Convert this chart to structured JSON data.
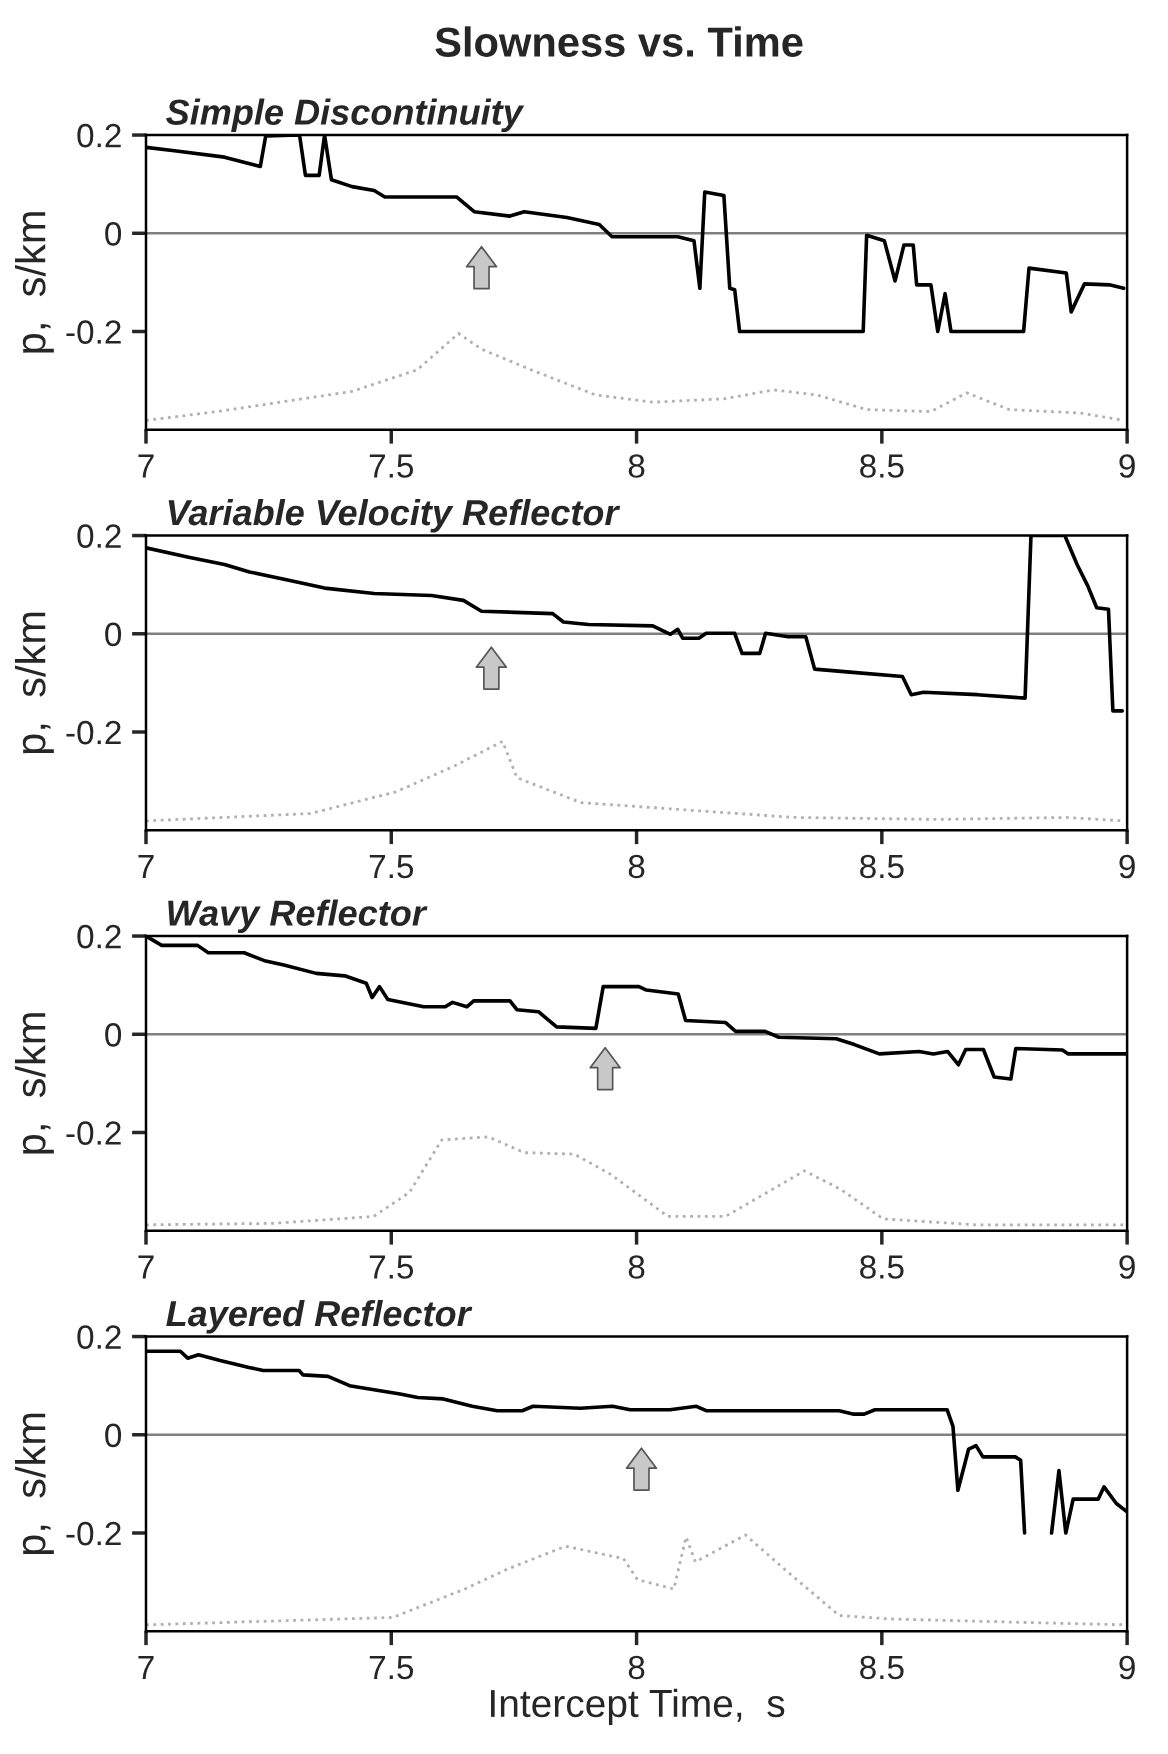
{
  "chart_data": [
    {
      "type": "line",
      "title": "Slowness vs. Time",
      "subtitle": "Simple Discontinuity",
      "ylabel": "p,  s/km",
      "xlim": [
        7,
        9
      ],
      "xticks": [
        7,
        7.5,
        8,
        8.5,
        9
      ],
      "ylim": [
        -0.4,
        0.2
      ],
      "yticks": [
        -0.2,
        0,
        0.2
      ],
      "grid": false,
      "legend": false,
      "ref_lines": [
        {
          "axis": "y",
          "value": 0,
          "color": "#808080"
        }
      ],
      "series": [
        {
          "color": "#000000",
          "line_style": "solid",
          "x": [
            7.0,
            7.058,
            7.16,
            7.233,
            7.244,
            7.313,
            7.325,
            7.353,
            7.364,
            7.378,
            7.42,
            7.465,
            7.487,
            7.633,
            7.669,
            7.742,
            7.771,
            7.858,
            7.924,
            7.95,
            8.084,
            8.117,
            8.129,
            8.139,
            8.178,
            8.19,
            8.2,
            8.21,
            8.462,
            8.469,
            8.505,
            8.527,
            8.545,
            8.564,
            8.571,
            8.6,
            8.614,
            8.629,
            8.641,
            8.789,
            8.8,
            8.876,
            8.886,
            8.913,
            8.964,
            8.993
          ],
          "values": [
            0.175,
            0.168,
            0.155,
            0.136,
            0.198,
            0.2,
            0.118,
            0.118,
            0.2,
            0.109,
            0.095,
            0.087,
            0.074,
            0.074,
            0.044,
            0.035,
            0.044,
            0.032,
            0.018,
            -0.007,
            -0.007,
            -0.015,
            -0.112,
            0.084,
            0.077,
            -0.112,
            -0.115,
            -0.2,
            -0.2,
            -0.004,
            -0.015,
            -0.097,
            -0.024,
            -0.024,
            -0.105,
            -0.105,
            -0.2,
            -0.123,
            -0.2,
            -0.2,
            -0.071,
            -0.081,
            -0.16,
            -0.103,
            -0.105,
            -0.112
          ]
        },
        {
          "color": "#b0b0b0",
          "line_style": "dotted",
          "x": [
            7.0,
            7.145,
            7.42,
            7.553,
            7.637,
            7.684,
            7.785,
            7.916,
            8.033,
            8.178,
            8.28,
            8.367,
            8.469,
            8.6,
            8.673,
            8.76,
            8.905,
            8.993
          ],
          "values": [
            -0.381,
            -0.363,
            -0.322,
            -0.278,
            -0.204,
            -0.236,
            -0.278,
            -0.329,
            -0.344,
            -0.337,
            -0.319,
            -0.329,
            -0.359,
            -0.363,
            -0.325,
            -0.359,
            -0.366,
            -0.381
          ]
        }
      ]
    },
    {
      "type": "line",
      "subtitle": "Variable Velocity Reflector",
      "ylabel": "p,  s/km",
      "xlim": [
        7,
        9
      ],
      "xticks": [
        7,
        7.5,
        8,
        8.5,
        9
      ],
      "ylim": [
        -0.4,
        0.2
      ],
      "yticks": [
        -0.2,
        0,
        0.2
      ],
      "grid": false,
      "legend": false,
      "ref_lines": [
        {
          "axis": "y",
          "value": 0,
          "color": "#808080"
        }
      ],
      "series": [
        {
          "color": "#000000",
          "line_style": "solid",
          "x": [
            7.0,
            7.087,
            7.16,
            7.211,
            7.291,
            7.364,
            7.465,
            7.582,
            7.647,
            7.684,
            7.829,
            7.851,
            7.902,
            8.033,
            8.069,
            8.084,
            8.094,
            8.127,
            8.142,
            8.2,
            8.215,
            8.251,
            8.263,
            8.309,
            8.345,
            8.363,
            8.447,
            8.542,
            8.56,
            8.585,
            8.695,
            8.792,
            8.804,
            8.873,
            8.898,
            8.92,
            8.938,
            8.962,
            8.971,
            8.99
          ],
          "values": [
            0.175,
            0.156,
            0.141,
            0.126,
            0.109,
            0.093,
            0.082,
            0.078,
            0.068,
            0.046,
            0.041,
            0.024,
            0.019,
            0.016,
            -0.001,
            0.009,
            -0.009,
            -0.009,
            0.001,
            0.001,
            -0.04,
            -0.04,
            0.001,
            -0.006,
            -0.006,
            -0.072,
            -0.079,
            -0.087,
            -0.124,
            -0.119,
            -0.124,
            -0.131,
            0.2,
            0.2,
            0.141,
            0.097,
            0.053,
            0.05,
            -0.157,
            -0.157
          ]
        },
        {
          "color": "#b0b0b0",
          "line_style": "dotted",
          "x": [
            7.0,
            7.335,
            7.509,
            7.625,
            7.727,
            7.756,
            7.887,
            8.105,
            8.324,
            8.615,
            8.876,
            8.993
          ],
          "values": [
            -0.381,
            -0.366,
            -0.322,
            -0.271,
            -0.219,
            -0.293,
            -0.344,
            -0.359,
            -0.374,
            -0.378,
            -0.374,
            -0.381
          ]
        }
      ]
    },
    {
      "type": "line",
      "subtitle": "Wavy Reflector",
      "ylabel": "p,  s/km",
      "xlim": [
        7,
        9
      ],
      "xticks": [
        7,
        7.5,
        8,
        8.5,
        9
      ],
      "ylim": [
        -0.4,
        0.2
      ],
      "yticks": [
        -0.2,
        0,
        0.2
      ],
      "grid": false,
      "legend": false,
      "ref_lines": [
        {
          "axis": "y",
          "value": 0,
          "color": "#808080"
        }
      ],
      "series": [
        {
          "color": "#000000",
          "line_style": "solid",
          "x": [
            7.0,
            7.032,
            7.105,
            7.127,
            7.2,
            7.244,
            7.281,
            7.347,
            7.405,
            7.449,
            7.461,
            7.476,
            7.493,
            7.566,
            7.61,
            7.625,
            7.654,
            7.668,
            7.742,
            7.756,
            7.8,
            7.837,
            7.917,
            7.932,
            8.005,
            8.02,
            8.085,
            8.1,
            8.181,
            8.202,
            8.262,
            8.29,
            8.407,
            8.444,
            8.495,
            8.576,
            8.605,
            8.634,
            8.656,
            8.671,
            8.707,
            8.729,
            8.763,
            8.773,
            8.868,
            8.88,
            9.0
          ],
          "values": [
            0.2,
            0.181,
            0.181,
            0.166,
            0.166,
            0.149,
            0.141,
            0.124,
            0.119,
            0.104,
            0.075,
            0.097,
            0.071,
            0.056,
            0.056,
            0.065,
            0.056,
            0.068,
            0.068,
            0.05,
            0.046,
            0.015,
            0.012,
            0.097,
            0.097,
            0.09,
            0.082,
            0.028,
            0.024,
            0.006,
            0.006,
            -0.006,
            -0.009,
            -0.021,
            -0.04,
            -0.035,
            -0.04,
            -0.035,
            -0.062,
            -0.031,
            -0.031,
            -0.087,
            -0.091,
            -0.029,
            -0.032,
            -0.04,
            -0.04
          ]
        },
        {
          "color": "#b0b0b0",
          "line_style": "dotted",
          "x": [
            7.0,
            7.259,
            7.464,
            7.537,
            7.603,
            7.698,
            7.771,
            7.873,
            7.947,
            8.064,
            8.181,
            8.254,
            8.342,
            8.415,
            8.503,
            8.693,
            9.0
          ],
          "values": [
            -0.388,
            -0.385,
            -0.371,
            -0.322,
            -0.215,
            -0.209,
            -0.241,
            -0.244,
            -0.285,
            -0.371,
            -0.371,
            -0.329,
            -0.278,
            -0.315,
            -0.376,
            -0.388,
            -0.388
          ]
        }
      ]
    },
    {
      "type": "line",
      "subtitle": "Layered Reflector",
      "xlabel": "Intercept Time,  s",
      "ylabel": "p,  s/km",
      "xlim": [
        7,
        9
      ],
      "xticks": [
        7,
        7.5,
        8,
        8.5,
        9
      ],
      "ylim": [
        -0.4,
        0.2
      ],
      "yticks": [
        -0.2,
        0,
        0.2
      ],
      "grid": false,
      "legend": false,
      "ref_lines": [
        {
          "axis": "y",
          "value": 0,
          "color": "#808080"
        }
      ],
      "series": [
        {
          "color": "#000000",
          "line_style": "solid",
          "x": [
            7.0,
            7.07,
            7.085,
            7.107,
            7.151,
            7.21,
            7.239,
            7.312,
            7.32,
            7.371,
            7.415,
            7.474,
            7.518,
            7.554,
            7.606,
            7.665,
            7.716,
            7.767,
            7.789,
            7.885,
            7.951,
            7.987,
            8.068,
            8.122,
            8.142,
            8.413,
            8.443,
            8.464,
            8.486,
            8.633,
            8.645,
            8.655,
            8.677,
            8.692,
            8.706,
            8.772,
            8.783,
            8.791,
            8.82,
            8.846,
            8.861,
            8.875,
            8.89,
            8.941,
            8.953,
            8.978,
            9.0
          ],
          "values": [
            0.17,
            0.17,
            0.156,
            0.163,
            0.151,
            0.137,
            0.131,
            0.131,
            0.122,
            0.119,
            0.1,
            0.09,
            0.083,
            0.076,
            0.073,
            0.058,
            0.049,
            0.049,
            0.058,
            0.054,
            0.058,
            0.051,
            0.051,
            0.058,
            0.049,
            0.049,
            0.042,
            0.042,
            0.051,
            0.051,
            0.017,
            -0.113,
            -0.029,
            -0.022,
            -0.045,
            -0.045,
            -0.052,
            -0.2,
            null,
            -0.2,
            -0.073,
            -0.2,
            -0.131,
            -0.131,
            -0.106,
            -0.14,
            -0.157
          ]
        },
        {
          "color": "#b0b0b0",
          "line_style": "dotted",
          "x": [
            7.0,
            7.503,
            7.65,
            7.738,
            7.855,
            7.973,
            8.002,
            8.076,
            8.101,
            8.12,
            8.222,
            8.31,
            8.413,
            8.516,
            8.824,
            9.0
          ],
          "values": [
            -0.387,
            -0.372,
            -0.314,
            -0.273,
            -0.227,
            -0.252,
            -0.295,
            -0.314,
            -0.208,
            -0.259,
            -0.204,
            -0.281,
            -0.368,
            -0.375,
            -0.383,
            -0.387
          ]
        }
      ]
    }
  ]
}
